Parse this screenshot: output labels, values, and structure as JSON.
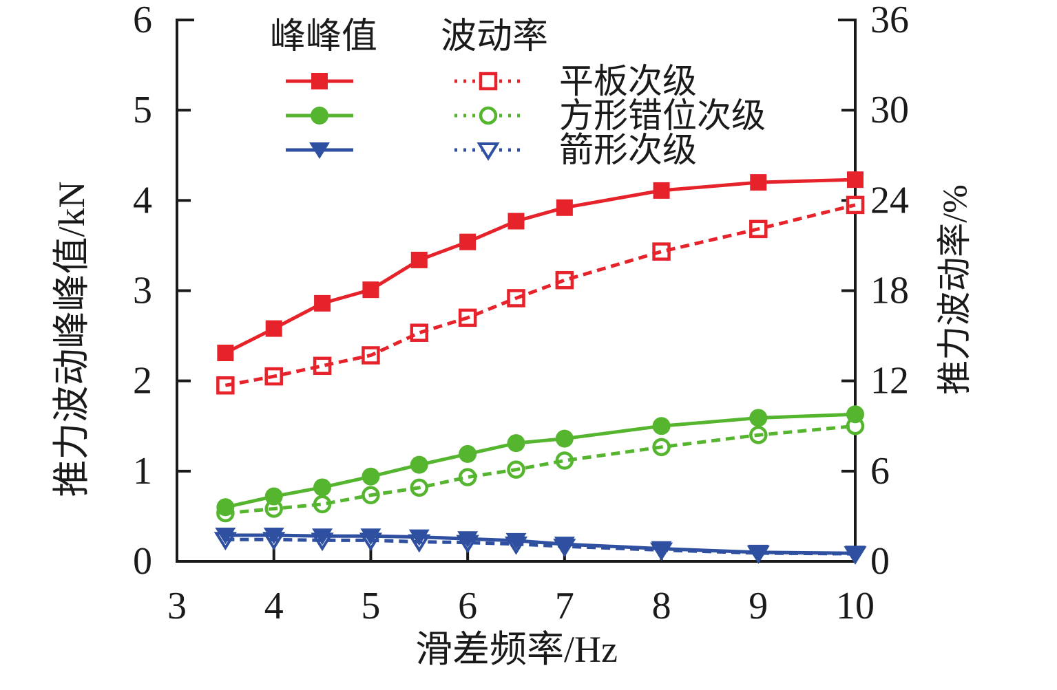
{
  "figure": {
    "background": "#ffffff",
    "text_color": "#1a1a1a"
  },
  "chart_data": {
    "type": "line",
    "xlabel": "滑差频率/Hz",
    "ylabel_left": "推力波动峰峰值/kN",
    "ylabel_right": "推力波动率/%",
    "xlim": [
      3,
      10
    ],
    "ylim_left": [
      0,
      6
    ],
    "ylim_right": [
      0,
      36
    ],
    "x_ticks": [
      3,
      4,
      5,
      6,
      7,
      8,
      9,
      10
    ],
    "y_ticks_left": [
      0,
      1,
      2,
      3,
      4,
      5,
      6
    ],
    "y_ticks_right": [
      0,
      6,
      12,
      18,
      24,
      30,
      36
    ],
    "grid": false,
    "legend": {
      "position": "top-left-inside",
      "header_solid": "峰峰值",
      "header_dashed": "波动率",
      "labels": [
        "平板次级",
        "方形错位次级",
        "箭形次级"
      ]
    },
    "x": [
      3.5,
      4,
      4.5,
      5,
      5.5,
      6,
      6.5,
      7,
      8,
      9,
      10
    ],
    "series": [
      {
        "name": "平板次级",
        "group": "峰峰值",
        "axis": "left",
        "style": "solid",
        "marker": "square-filled",
        "color": "#e6232a",
        "values": [
          2.31,
          2.58,
          2.86,
          3.01,
          3.34,
          3.54,
          3.77,
          3.92,
          4.11,
          4.2,
          4.23
        ]
      },
      {
        "name": "平板次级",
        "group": "波动率",
        "axis": "right",
        "style": "dashed",
        "marker": "square-hollow",
        "color": "#e6232a",
        "values": [
          11.7,
          12.3,
          13.0,
          13.7,
          15.2,
          16.2,
          17.5,
          18.7,
          20.6,
          22.1,
          23.7
        ]
      },
      {
        "name": "方形错位次级",
        "group": "峰峰值",
        "axis": "left",
        "style": "solid",
        "marker": "circle-filled",
        "color": "#55b52f",
        "values": [
          0.6,
          0.72,
          0.82,
          0.94,
          1.07,
          1.19,
          1.31,
          1.36,
          1.5,
          1.59,
          1.63
        ]
      },
      {
        "name": "方形错位次级",
        "group": "波动率",
        "axis": "right",
        "style": "dashed",
        "marker": "circle-hollow",
        "color": "#55b52f",
        "values": [
          3.2,
          3.5,
          3.8,
          4.4,
          4.9,
          5.6,
          6.1,
          6.7,
          7.6,
          8.4,
          9.0
        ]
      },
      {
        "name": "箭形次级",
        "group": "峰峰值",
        "axis": "left",
        "style": "solid",
        "marker": "triangle-down-filled",
        "color": "#2f4fa0",
        "values": [
          0.29,
          0.29,
          0.28,
          0.28,
          0.27,
          0.25,
          0.23,
          0.19,
          0.14,
          0.1,
          0.09
        ]
      },
      {
        "name": "箭形次级",
        "group": "波动率",
        "axis": "right",
        "style": "dashed",
        "marker": "triangle-down-hollow",
        "color": "#2f4fa0",
        "values": [
          1.45,
          1.45,
          1.4,
          1.4,
          1.3,
          1.25,
          1.15,
          1.0,
          0.75,
          0.55,
          0.5
        ]
      }
    ]
  }
}
